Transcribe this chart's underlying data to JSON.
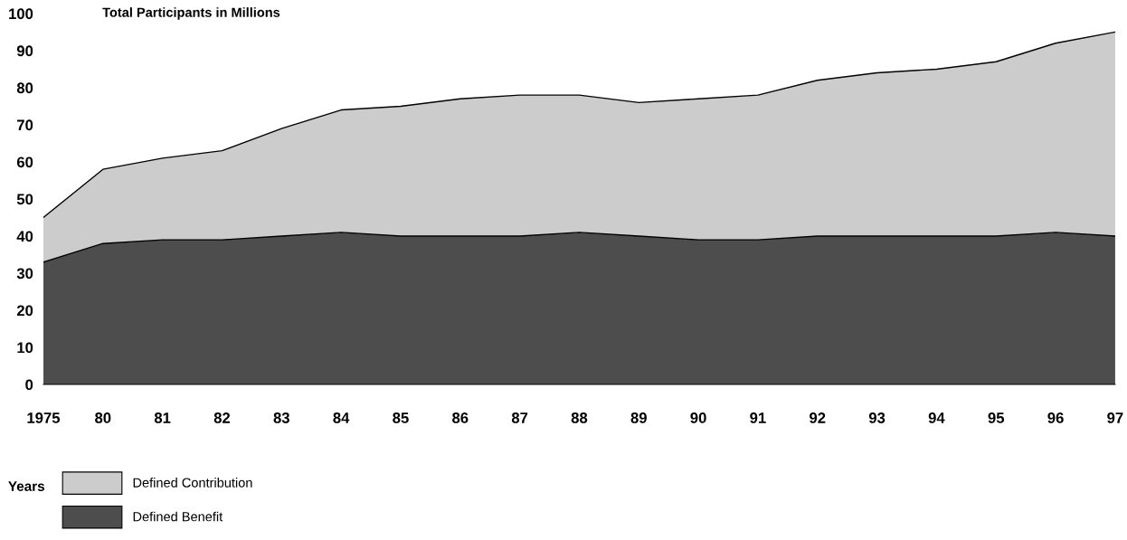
{
  "chart_data": {
    "type": "area",
    "stacked": true,
    "title": "Total Participants in Millions",
    "xlabel": "Years",
    "categories": [
      "1975",
      "80",
      "81",
      "82",
      "83",
      "84",
      "85",
      "86",
      "87",
      "88",
      "89",
      "90",
      "91",
      "92",
      "93",
      "94",
      "95",
      "96",
      "97"
    ],
    "series": [
      {
        "name": "Defined Benefit",
        "color": "#4d4d4d",
        "values": [
          33,
          38,
          39,
          39,
          40,
          41,
          40,
          40,
          40,
          41,
          40,
          39,
          39,
          40,
          40,
          40,
          40,
          41,
          40
        ]
      },
      {
        "name": "Defined Contribution",
        "color": "#cccccc",
        "values": [
          12,
          20,
          22,
          24,
          29,
          33,
          35,
          37,
          38,
          37,
          36,
          38,
          39,
          42,
          44,
          45,
          47,
          51,
          55
        ]
      }
    ],
    "ylim": [
      0,
      100
    ],
    "yticks": [
      0,
      10,
      20,
      30,
      40,
      50,
      60,
      70,
      80,
      90,
      100
    ],
    "grid": false,
    "legend": "bottom left"
  }
}
